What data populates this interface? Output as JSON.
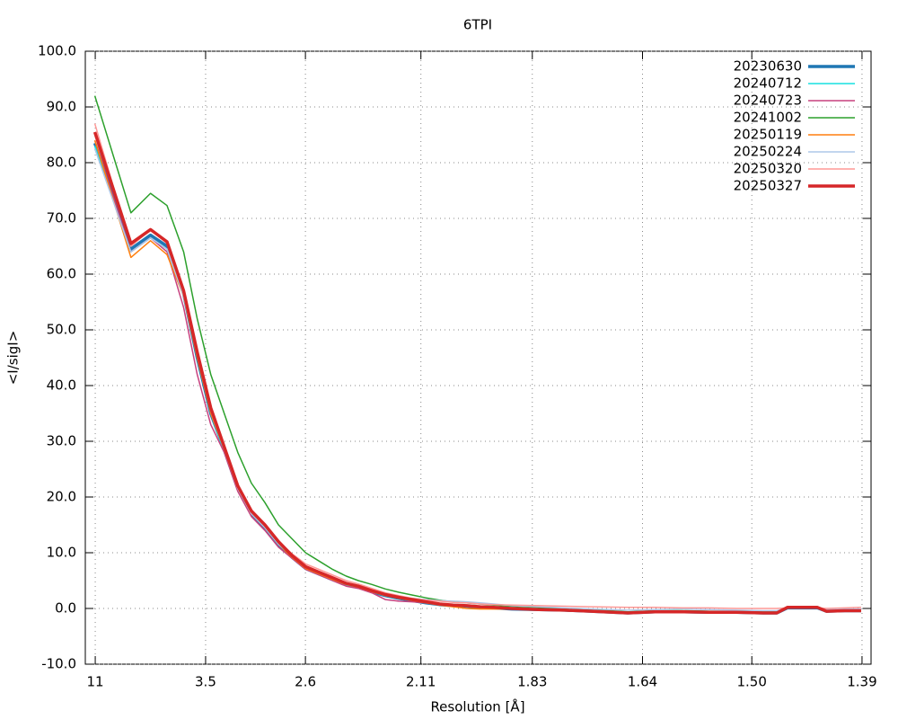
{
  "chart_data": {
    "type": "line",
    "title": "6TPI",
    "x_label": "Resolution [Å]",
    "y_label": "<I/sigI>",
    "xlim": [
      0.0017,
      0.5236
    ],
    "ylim": [
      -10,
      100
    ],
    "grid": true,
    "legend": "top-right",
    "xticks": [
      {
        "value": 0.0083,
        "label": "11"
      },
      {
        "value": 0.0816,
        "label": "3.5"
      },
      {
        "value": 0.1479,
        "label": "2.6"
      },
      {
        "value": 0.2246,
        "label": "2.11"
      },
      {
        "value": 0.2986,
        "label": "1.83"
      },
      {
        "value": 0.3718,
        "label": "1.64"
      },
      {
        "value": 0.4444,
        "label": "1.50"
      },
      {
        "value": 0.5176,
        "label": "1.39"
      }
    ],
    "yticks": [
      {
        "value": -10,
        "label": "-10.0"
      },
      {
        "value": 0,
        "label": "0.0"
      },
      {
        "value": 10,
        "label": "10.0"
      },
      {
        "value": 20,
        "label": "20.0"
      },
      {
        "value": 30,
        "label": "30.0"
      },
      {
        "value": 40,
        "label": "40.0"
      },
      {
        "value": 50,
        "label": "50.0"
      },
      {
        "value": 60,
        "label": "60.0"
      },
      {
        "value": 70,
        "label": "70.0"
      },
      {
        "value": 80,
        "label": "80.0"
      },
      {
        "value": 90,
        "label": "90.0"
      },
      {
        "value": 100,
        "label": "100.0"
      }
    ],
    "x": [
      0.008,
      0.032,
      0.045,
      0.056,
      0.067,
      0.076,
      0.085,
      0.094,
      0.103,
      0.112,
      0.121,
      0.13,
      0.139,
      0.148,
      0.157,
      0.166,
      0.175,
      0.183,
      0.192,
      0.201,
      0.21,
      0.219,
      0.228,
      0.237,
      0.246,
      0.255,
      0.264,
      0.273,
      0.285,
      0.303,
      0.32,
      0.338,
      0.362,
      0.38,
      0.398,
      0.416,
      0.434,
      0.452,
      0.461,
      0.468,
      0.488,
      0.494,
      0.506,
      0.517
    ],
    "series": [
      {
        "name": "20230630",
        "color": "#1f77b4",
        "width": 3.5,
        "values": [
          83.5,
          64.5,
          67,
          65,
          56.5,
          45,
          35,
          28.5,
          21.5,
          17,
          14.5,
          11.5,
          9.2,
          7.2,
          6.2,
          5.2,
          4.3,
          3.8,
          3,
          2.3,
          1.8,
          1.4,
          1,
          0.7,
          0.5,
          0.4,
          0.2,
          0.1,
          -0.1,
          -0.2,
          -0.3,
          -0.5,
          -0.8,
          -0.6,
          -0.6,
          -0.7,
          -0.7,
          -0.8,
          -0.8,
          0.1,
          0.1,
          -0.5,
          -0.4,
          -0.4
        ]
      },
      {
        "name": "20240712",
        "color": "#17e0e0",
        "width": 1.5,
        "values": [
          83,
          64,
          66.5,
          64.5,
          56,
          45,
          35,
          28,
          21.5,
          17,
          14.5,
          11.5,
          9.2,
          7,
          6,
          5,
          4.2,
          3.7,
          3,
          2.3,
          1.8,
          1.4,
          1,
          0.7,
          0.5,
          0.4,
          0.2,
          0.1,
          -0.1,
          -0.2,
          -0.3,
          -0.5,
          -0.8,
          -0.6,
          -0.6,
          -0.7,
          -0.7,
          -0.8,
          -0.8,
          0.1,
          0.1,
          -0.5,
          -0.4,
          -0.4
        ]
      },
      {
        "name": "20240723",
        "color": "#c7417f",
        "width": 1.5,
        "values": [
          84,
          64,
          66.5,
          64,
          54,
          42,
          33,
          28,
          21,
          16.5,
          14,
          11,
          9,
          7,
          6,
          5,
          4,
          3.6,
          2.8,
          1.6,
          1.3,
          1.2,
          1,
          0.7,
          0.5,
          0.4,
          0.2,
          0.1,
          -0.1,
          -0.2,
          -0.3,
          -0.5,
          -0.8,
          -0.6,
          -0.6,
          -0.7,
          -0.7,
          -0.8,
          -0.8,
          0.1,
          0.1,
          -0.5,
          -0.4,
          -0.4
        ]
      },
      {
        "name": "20241002",
        "color": "#2ca02c",
        "width": 1.5,
        "values": [
          92,
          71,
          74.5,
          72.3,
          64,
          52,
          42,
          35,
          28,
          22.5,
          19,
          15,
          12.5,
          10,
          8.5,
          7,
          5.8,
          5,
          4.3,
          3.5,
          2.9,
          2.4,
          1.9,
          1.5,
          1.2,
          1,
          0.8,
          0.6,
          0.4,
          0.2,
          0,
          -0.2,
          -0.6,
          -0.4,
          -0.4,
          -0.5,
          -0.5,
          -0.6,
          -0.6,
          0.2,
          0.3,
          -0.3,
          -0.2,
          -0.2
        ]
      },
      {
        "name": "20250119",
        "color": "#ff7f0e",
        "width": 1.5,
        "values": [
          84,
          63,
          66,
          63.5,
          56,
          45,
          35,
          28.5,
          21.5,
          17,
          14.5,
          11.5,
          9.2,
          7.2,
          6.2,
          5.2,
          4.3,
          3.8,
          3,
          2.3,
          1.8,
          1.4,
          1,
          0.6,
          0.3,
          0,
          -0.1,
          -0.1,
          -0.1,
          -0.2,
          -0.3,
          -0.5,
          -0.8,
          -0.6,
          -0.6,
          -0.7,
          -0.7,
          -0.8,
          -0.8,
          0.1,
          0.1,
          -0.5,
          -0.4,
          -0.4
        ]
      },
      {
        "name": "20250224",
        "color": "#aec7e8",
        "width": 1.5,
        "values": [
          82.5,
          64,
          66.5,
          64.5,
          56,
          45.5,
          35.5,
          28.5,
          21.5,
          17,
          14.5,
          11.5,
          9.5,
          7.5,
          6.5,
          5.5,
          4.5,
          4,
          3.2,
          2.5,
          2,
          1.8,
          1.6,
          1.4,
          1.3,
          1.2,
          1,
          0.8,
          0.5,
          0.3,
          0.1,
          -0.1,
          -0.3,
          -0.2,
          -0.1,
          -0.2,
          -0.3,
          -0.4,
          -0.4,
          0.1,
          0.1,
          -0.2,
          -0.1,
          -0.1
        ]
      },
      {
        "name": "20250320",
        "color": "#ff9896",
        "width": 1.5,
        "values": [
          87,
          65,
          68,
          65.5,
          57,
          46,
          36,
          29,
          22,
          17.5,
          15,
          12,
          9.8,
          8,
          7,
          6,
          5,
          4.4,
          3.6,
          2.8,
          2.3,
          1.8,
          1.5,
          1.3,
          1.1,
          1,
          0.8,
          0.7,
          0.6,
          0.5,
          0.4,
          0.3,
          0.2,
          0.2,
          0.1,
          0.1,
          0,
          0,
          0,
          0.1,
          0.1,
          0,
          0.1,
          0.2
        ]
      },
      {
        "name": "20250327",
        "color": "#d62728",
        "width": 3.5,
        "values": [
          85.5,
          65.5,
          68,
          65.8,
          57,
          46,
          36,
          29,
          22,
          17.5,
          15,
          12,
          9.5,
          7.5,
          6.5,
          5.5,
          4.5,
          4,
          3.2,
          2.5,
          2,
          1.6,
          1.2,
          0.8,
          0.6,
          0.5,
          0.3,
          0.2,
          0,
          -0.2,
          -0.3,
          -0.5,
          -0.8,
          -0.6,
          -0.6,
          -0.7,
          -0.7,
          -0.8,
          -0.8,
          0.2,
          0.2,
          -0.5,
          -0.4,
          -0.4
        ]
      }
    ]
  }
}
